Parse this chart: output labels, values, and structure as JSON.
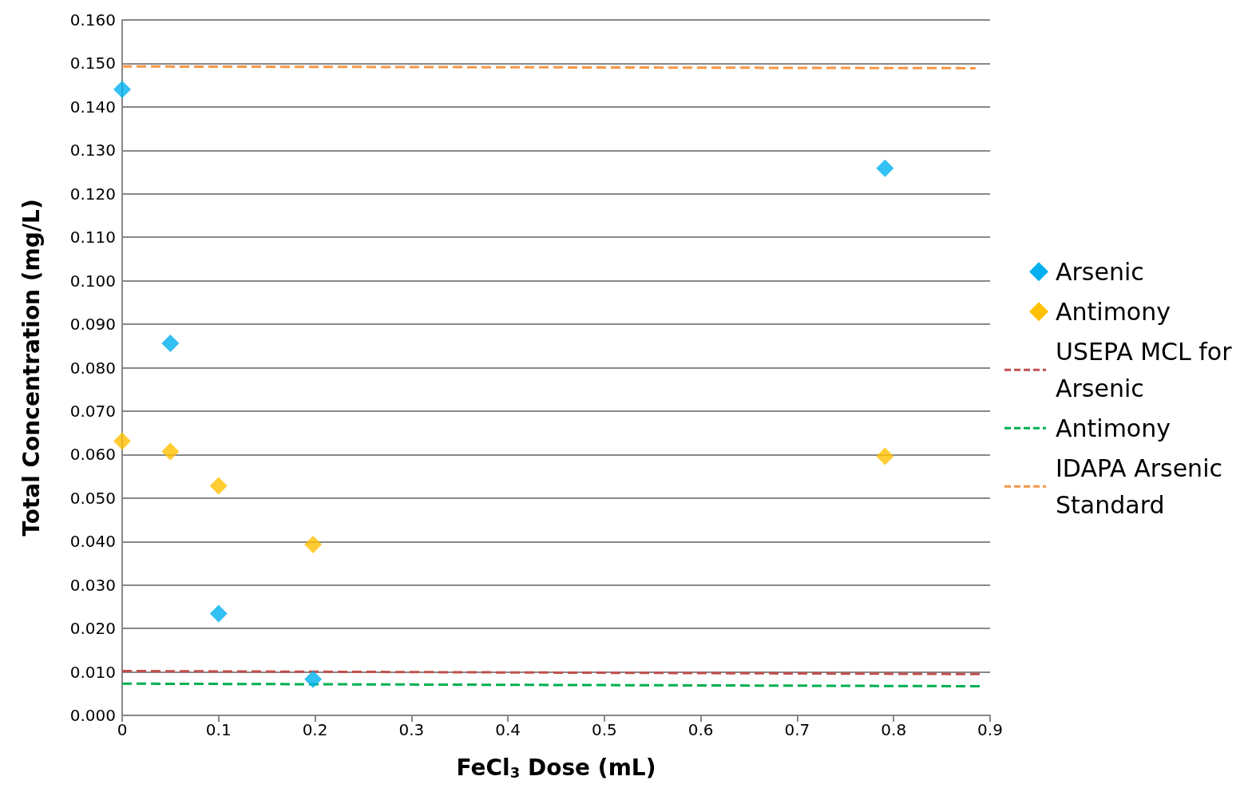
{
  "chart_data": {
    "type": "scatter",
    "xlabel": "FeCl$_{3}$ Dose (mL)",
    "ylabel": "Total Concentration (mg/L)",
    "xlim": [
      0,
      0.9
    ],
    "xticks": [
      0,
      0.1,
      0.2,
      0.3,
      0.4,
      0.5,
      0.6,
      0.7,
      0.8,
      0.9
    ],
    "ylim": [
      0,
      0.16
    ],
    "yticks": [
      {
        "value": 0,
        "label": "0.000"
      },
      {
        "value": 0.01,
        "label": "0.010"
      },
      {
        "value": 0.02,
        "label": "0.020"
      },
      {
        "value": 0.03,
        "label": "0.030"
      },
      {
        "value": 0.04,
        "label": "0.040"
      },
      {
        "value": 0.05,
        "label": "0.050"
      },
      {
        "value": 0.06,
        "label": "0.060"
      },
      {
        "value": 0.07,
        "label": "0.070"
      },
      {
        "value": 0.08,
        "label": "0.080"
      },
      {
        "value": 0.09,
        "label": "0.090"
      },
      {
        "value": 0.1,
        "label": "0.100"
      },
      {
        "value": 0.11,
        "label": "0.110"
      },
      {
        "value": 0.12,
        "label": "0.120"
      },
      {
        "value": 0.13,
        "label": "0.130"
      },
      {
        "value": 0.14,
        "label": "0.140"
      },
      {
        "value": 0.15,
        "label": "0.150"
      },
      {
        "value": 0.16,
        "label": "0.160"
      }
    ],
    "grid": "y",
    "legend": "right",
    "marker": "diamond",
    "series": [
      {
        "name": "Arsenic",
        "color": "#00b0f0",
        "x": [
          0,
          0.05,
          0.1,
          0.198,
          0.791
        ],
        "values": [
          0.144,
          0.0856,
          0.0234,
          0.0083,
          0.1259
        ]
      },
      {
        "name": "Antimony",
        "color": "#ffc000",
        "x": [
          0,
          0.05,
          0.1,
          0.198,
          0.791
        ],
        "values": [
          0.0631,
          0.0607,
          0.0528,
          0.0393,
          0.0596
        ]
      },
      {
        "name": "USEPA MCL for Arsenic",
        "type": "line",
        "color": "#c0504d",
        "line_style": "dashed",
        "marker": "none",
        "x": [
          0,
          0.891
        ],
        "values": [
          0.0102,
          0.0095
        ]
      },
      {
        "name": "Antimony",
        "type": "line",
        "color": "#00b050",
        "line_style": "dashed",
        "marker": "none",
        "x": [
          0,
          0.891
        ],
        "values": [
          0.0073,
          0.0067
        ]
      },
      {
        "name": "IDAPA Arsenic Standard",
        "type": "line",
        "color": "#f79646",
        "line_style": "dashed",
        "marker": "none",
        "x": [
          0,
          0.885
        ],
        "values": [
          0.1493,
          0.1489
        ]
      }
    ]
  }
}
